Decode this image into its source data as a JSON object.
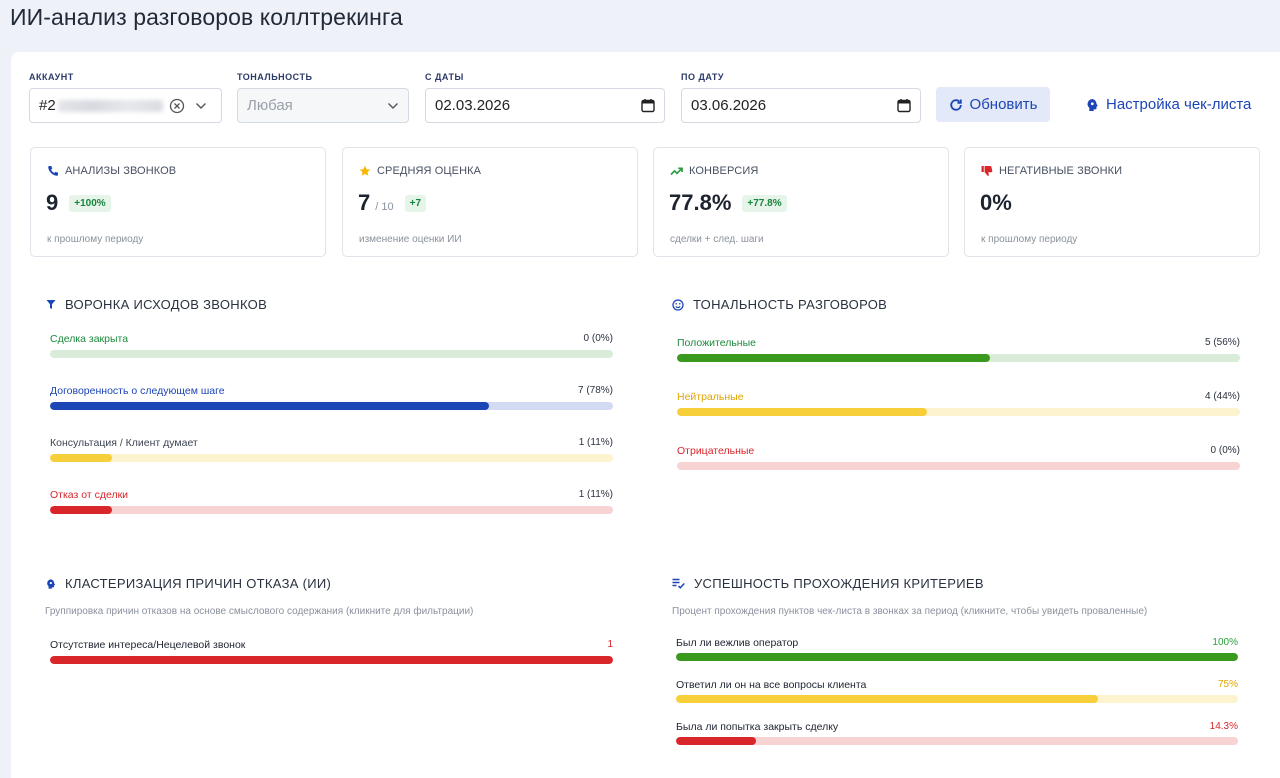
{
  "page_title": "ИИ-анализ разговоров коллтрекинга",
  "filters": {
    "account": {
      "label": "АККАУНТ",
      "value": "#2"
    },
    "tone": {
      "label": "ТОНАЛЬНОСТЬ",
      "placeholder": "Любая"
    },
    "date_from": {
      "label": "С ДАТЫ",
      "value": "02.03.2026"
    },
    "date_to": {
      "label": "ПО ДАТУ",
      "value": "03.06.2026"
    },
    "refresh_label": "Обновить",
    "settings_label": "Настройка чек-листа"
  },
  "cards": [
    {
      "icon": "phone-icon",
      "title": "АНАЛИЗЫ ЗВОНКОВ",
      "value": "9",
      "suffix": "",
      "badge": "+100%",
      "note": "к прошлому периоду",
      "icon_color": "#1c45b6"
    },
    {
      "icon": "star-icon",
      "title": "СРЕДНЯЯ ОЦЕНКА",
      "value": "7",
      "suffix": "/ 10",
      "badge": "+7",
      "note": "изменение оценки ИИ",
      "icon_color": "#f5b700"
    },
    {
      "icon": "trending-up-icon",
      "title": "КОНВЕРСИЯ",
      "value": "77.8%",
      "suffix": "",
      "badge": "+77.8%",
      "note": "сделки + след. шаги",
      "icon_color": "#2a9d3e"
    },
    {
      "icon": "thumbs-down-icon",
      "title": "НЕГАТИВНЫЕ ЗВОНКИ",
      "value": "0%",
      "suffix": "",
      "badge": "",
      "note": "к прошлому периоду",
      "icon_color": "#d9262b"
    }
  ],
  "funnel": {
    "title": "ВОРОНКА ИСХОДОВ ЗВОНКОВ",
    "rows": [
      {
        "label": "Сделка закрыта",
        "value": "0 (0%)",
        "fraction": 0,
        "label_color": "#1a8a3c",
        "fill": "#2a9d3e",
        "track": "#d9ecd9"
      },
      {
        "label": "Договоренность о следующем шаге",
        "value": "7 (78%)",
        "fraction": 0.78,
        "label_color": "#1c45b6",
        "fill": "#1c45b6",
        "track": "#d2dbf3"
      },
      {
        "label": "Консультация / Клиент думает",
        "value": "1 (11%)",
        "fraction": 0.11,
        "label_color": "#3c4452",
        "fill": "#f7cf3a",
        "track": "#fdf3cf"
      },
      {
        "label": "Отказ от сделки",
        "value": "1 (11%)",
        "fraction": 0.11,
        "label_color": "#d9262b",
        "fill": "#d9262b",
        "track": "#f8d3d3"
      }
    ]
  },
  "sentiment": {
    "title": "ТОНАЛЬНОСТЬ РАЗГОВОРОВ",
    "rows": [
      {
        "label": "Положительные",
        "value": "5 (56%)",
        "fraction": 0.556,
        "label_color": "#1a8a3c",
        "fill": "#3a9a1e",
        "track": "#d9ecd9"
      },
      {
        "label": "Нейтральные",
        "value": "4 (44%)",
        "fraction": 0.444,
        "label_color": "#e0a400",
        "fill": "#f7cf3a",
        "track": "#fdf3cf"
      },
      {
        "label": "Отрицательные",
        "value": "0 (0%)",
        "fraction": 0,
        "label_color": "#d9262b",
        "fill": "#d9262b",
        "track": "#f8d3d3"
      }
    ]
  },
  "clusters": {
    "title": "КЛАСТЕРИЗАЦИЯ ПРИЧИН ОТКАЗА (ИИ)",
    "subtitle": "Группировка причин отказов на основе смыслового содержания (кликните для фильтрации)",
    "rows": [
      {
        "label": "Отсутствие интереса/Нецелевой звонок",
        "value": "1",
        "fraction": 1,
        "label_color": "#1d2430",
        "value_color": "#d9262b",
        "fill": "#d9262b",
        "track": "#f8d3d3"
      }
    ]
  },
  "criteria": {
    "title": "УСПЕШНОСТЬ ПРОХОЖДЕНИЯ КРИТЕРИЕВ",
    "subtitle": "Процент прохождения пунктов чек-листа в звонках за период (кликните, чтобы увидеть проваленные)",
    "rows": [
      {
        "label": "Был ли вежлив оператор",
        "value": "100%",
        "fraction": 1,
        "label_color": "#1d2430",
        "value_color": "#2a9d3e",
        "fill": "#3a9a1e",
        "track": "#d9ecd9"
      },
      {
        "label": "Ответил ли он на все вопросы клиента",
        "value": "75%",
        "fraction": 0.75,
        "label_color": "#1d2430",
        "value_color": "#e0a400",
        "fill": "#f7cf3a",
        "track": "#fdf3cf"
      },
      {
        "label": "Была ли попытка закрыть сделку",
        "value": "14.3%",
        "fraction": 0.143,
        "label_color": "#1d2430",
        "value_color": "#d9262b",
        "fill": "#d9262b",
        "track": "#f8d3d3"
      }
    ]
  }
}
